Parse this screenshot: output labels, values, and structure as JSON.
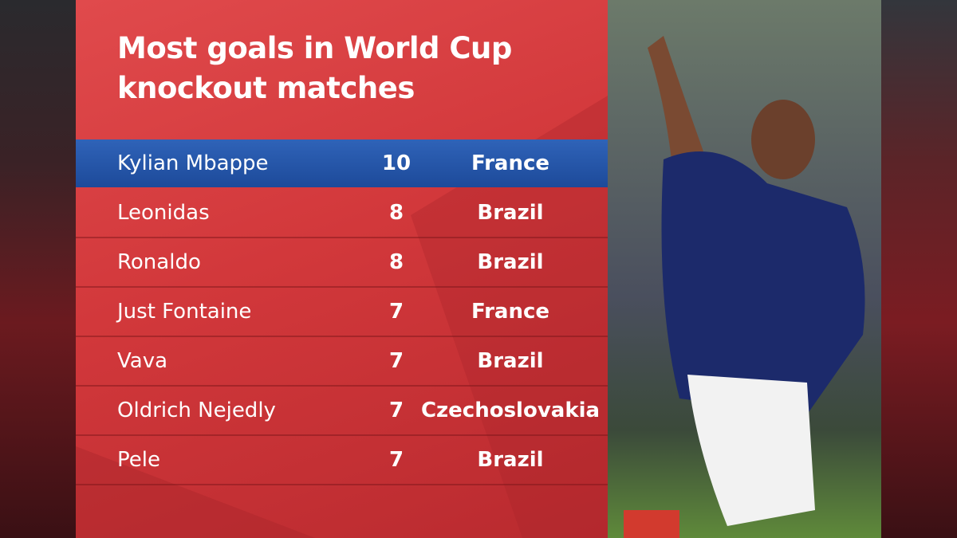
{
  "title": "Most goals in World Cup knockout matches",
  "table": {
    "rows": [
      [
        "Kylian Mbappe",
        10,
        "France"
      ],
      [
        "Leonidas",
        8,
        "Brazil"
      ],
      [
        "Ronaldo",
        8,
        "Brazil"
      ],
      [
        "Just Fontaine",
        7,
        "France"
      ],
      [
        "Vava",
        7,
        "Brazil"
      ],
      [
        "Oldrich Nejedly",
        7,
        "Czechoslovakia"
      ],
      [
        "Pele",
        7,
        "Brazil"
      ]
    ]
  }
}
